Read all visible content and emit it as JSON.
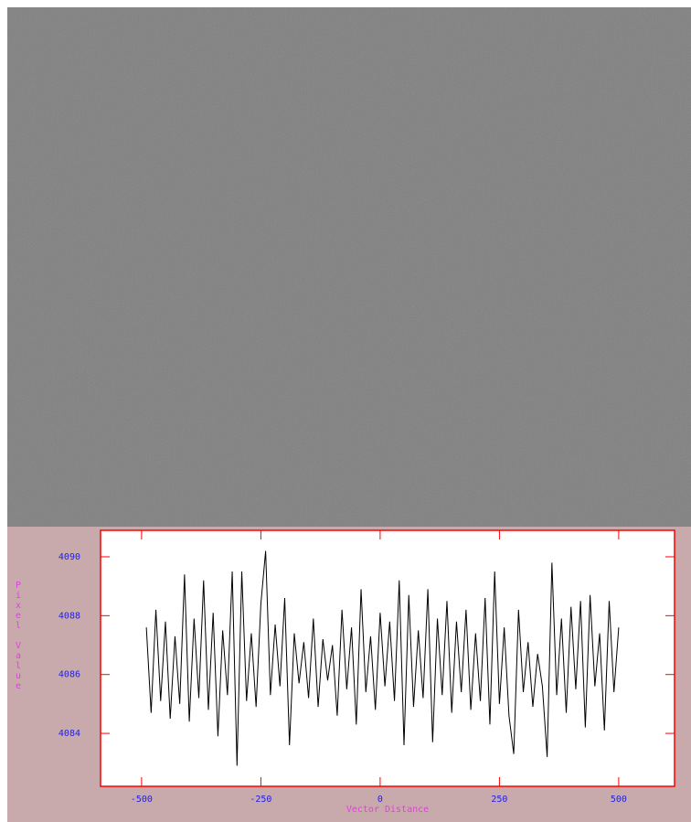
{
  "chart_data": {
    "type": "line",
    "x_label": "Vector Distance",
    "y_label": "Pixel Value",
    "x": [
      -490,
      -480,
      -470,
      -460,
      -450,
      -440,
      -430,
      -420,
      -410,
      -400,
      -390,
      -380,
      -370,
      -360,
      -350,
      -340,
      -330,
      -320,
      -310,
      -300,
      -290,
      -280,
      -270,
      -260,
      -250,
      -240,
      -230,
      -220,
      -210,
      -200,
      -190,
      -180,
      -170,
      -160,
      -150,
      -140,
      -130,
      -120,
      -110,
      -100,
      -90,
      -80,
      -70,
      -60,
      -50,
      -40,
      -30,
      -20,
      -10,
      0,
      10,
      20,
      30,
      40,
      50,
      60,
      70,
      80,
      90,
      100,
      110,
      120,
      130,
      140,
      150,
      160,
      170,
      180,
      190,
      200,
      210,
      220,
      230,
      240,
      250,
      260,
      270,
      280,
      290,
      300,
      310,
      320,
      330,
      340,
      350,
      360,
      370,
      380,
      390,
      400,
      410,
      420,
      430,
      440,
      450,
      460,
      470,
      480,
      490,
      500
    ],
    "series": [
      {
        "color": "#000000",
        "values": [
          4087.6,
          4084.7,
          4088.2,
          4085.1,
          4087.8,
          4084.5,
          4087.3,
          4085.0,
          4089.4,
          4084.4,
          4087.9,
          4085.2,
          4089.2,
          4084.8,
          4088.1,
          4083.9,
          4087.5,
          4085.3,
          4089.5,
          4082.9,
          4089.5,
          4085.1,
          4087.4,
          4084.9,
          4088.4,
          4090.2,
          4085.3,
          4087.7,
          4085.6,
          4088.6,
          4083.6,
          4087.4,
          4085.7,
          4087.1,
          4085.2,
          4087.9,
          4084.9,
          4087.2,
          4085.8,
          4087.0,
          4084.6,
          4088.2,
          4085.5,
          4087.6,
          4084.3,
          4088.9,
          4085.4,
          4087.3,
          4084.8,
          4088.1,
          4085.6,
          4087.8,
          4085.1,
          4089.2,
          4083.6,
          4088.7,
          4084.9,
          4087.5,
          4085.2,
          4088.9,
          4083.7,
          4087.9,
          4085.3,
          4088.5,
          4084.7,
          4087.8,
          4085.4,
          4088.2,
          4084.8,
          4087.4,
          4085.1,
          4088.6,
          4084.3,
          4089.5,
          4085.0,
          4087.6,
          4084.6,
          4083.3,
          4088.2,
          4085.4,
          4087.1,
          4084.9,
          4086.7,
          4085.6,
          4083.2,
          4089.8,
          4085.3,
          4087.9,
          4084.7,
          4088.3,
          4085.5,
          4088.5,
          4084.2,
          4088.7,
          4085.6,
          4087.4,
          4084.1,
          4088.5,
          4085.4,
          4087.6
        ]
      }
    ],
    "xlim": [
      -586,
      617
    ],
    "ylim": [
      4082.2,
      4090.9
    ],
    "xticks": [
      -500,
      -250,
      0,
      250,
      500
    ],
    "yticks": [
      4084,
      4086,
      4088,
      4090
    ],
    "frame_color": "#ff0000",
    "tick_label_color": "#2020e0",
    "axis_label_color": "#e040e0"
  }
}
